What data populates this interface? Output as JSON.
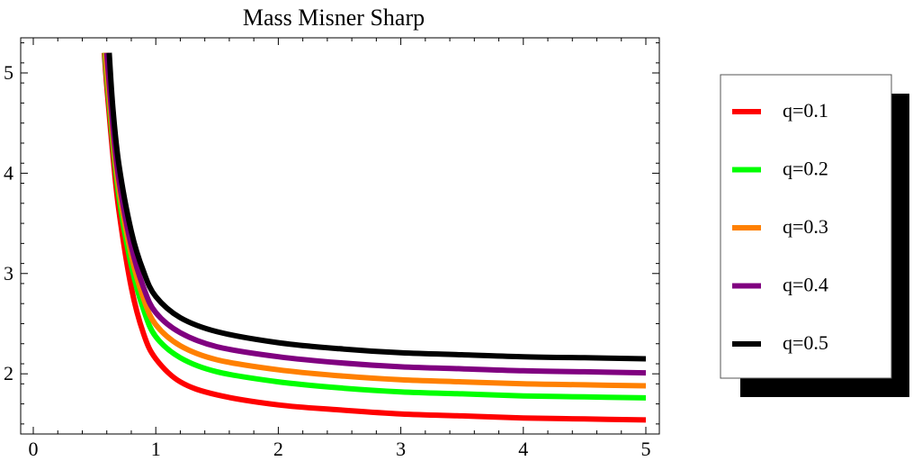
{
  "chart_data": {
    "type": "line",
    "title": "Mass Misner Sharp",
    "xlabel": "",
    "ylabel": "",
    "xlim": [
      0,
      5
    ],
    "ylim": [
      1.4,
      5.35
    ],
    "x_ticks": [
      "0",
      "1",
      "2",
      "3",
      "4",
      "5"
    ],
    "y_ticks": [
      "2",
      "3",
      "4",
      "5"
    ],
    "grid": false,
    "legend_position": "right",
    "series": [
      {
        "name": "q=0.1",
        "color": "#ff0000",
        "x": [
          0.58,
          0.6,
          0.65,
          0.7,
          0.8,
          0.9,
          1.0,
          1.2,
          1.5,
          2.0,
          2.5,
          3.0,
          3.5,
          4.0,
          4.5,
          5.0
        ],
        "y": [
          5.2,
          4.87,
          4.18,
          3.62,
          2.86,
          2.4,
          2.15,
          1.92,
          1.79,
          1.69,
          1.64,
          1.6,
          1.58,
          1.56,
          1.55,
          1.54
        ]
      },
      {
        "name": "q=0.2",
        "color": "#00ff00",
        "x": [
          0.585,
          0.6,
          0.65,
          0.7,
          0.8,
          0.9,
          1.0,
          1.2,
          1.5,
          2.0,
          2.5,
          3.0,
          3.5,
          4.0,
          4.5,
          5.0
        ],
        "y": [
          5.2,
          4.96,
          4.3,
          3.76,
          3.08,
          2.64,
          2.37,
          2.16,
          2.02,
          1.92,
          1.86,
          1.82,
          1.8,
          1.78,
          1.77,
          1.76
        ]
      },
      {
        "name": "q=0.3",
        "color": "#ff8000",
        "x": [
          0.59,
          0.6,
          0.65,
          0.7,
          0.8,
          0.9,
          1.0,
          1.2,
          1.5,
          2.0,
          2.5,
          3.0,
          3.5,
          4.0,
          4.5,
          5.0
        ],
        "y": [
          5.2,
          5.03,
          4.37,
          3.84,
          3.18,
          2.75,
          2.49,
          2.28,
          2.14,
          2.04,
          1.98,
          1.94,
          1.92,
          1.9,
          1.89,
          1.88
        ]
      },
      {
        "name": "q=0.4",
        "color": "#800080",
        "x": [
          0.6,
          0.65,
          0.7,
          0.8,
          0.9,
          1.0,
          1.2,
          1.5,
          2.0,
          2.5,
          3.0,
          3.5,
          4.0,
          4.5,
          5.0
        ],
        "y": [
          5.2,
          4.46,
          3.93,
          3.27,
          2.86,
          2.61,
          2.41,
          2.27,
          2.17,
          2.11,
          2.07,
          2.05,
          2.03,
          2.02,
          2.01
        ]
      },
      {
        "name": "q=0.5",
        "color": "#000000",
        "x": [
          0.62,
          0.65,
          0.7,
          0.8,
          0.9,
          1.0,
          1.2,
          1.5,
          2.0,
          2.5,
          3.0,
          3.5,
          4.0,
          4.5,
          5.0
        ],
        "y": [
          5.2,
          4.65,
          4.08,
          3.42,
          3.02,
          2.77,
          2.56,
          2.42,
          2.31,
          2.25,
          2.21,
          2.19,
          2.17,
          2.16,
          2.15
        ]
      }
    ]
  }
}
